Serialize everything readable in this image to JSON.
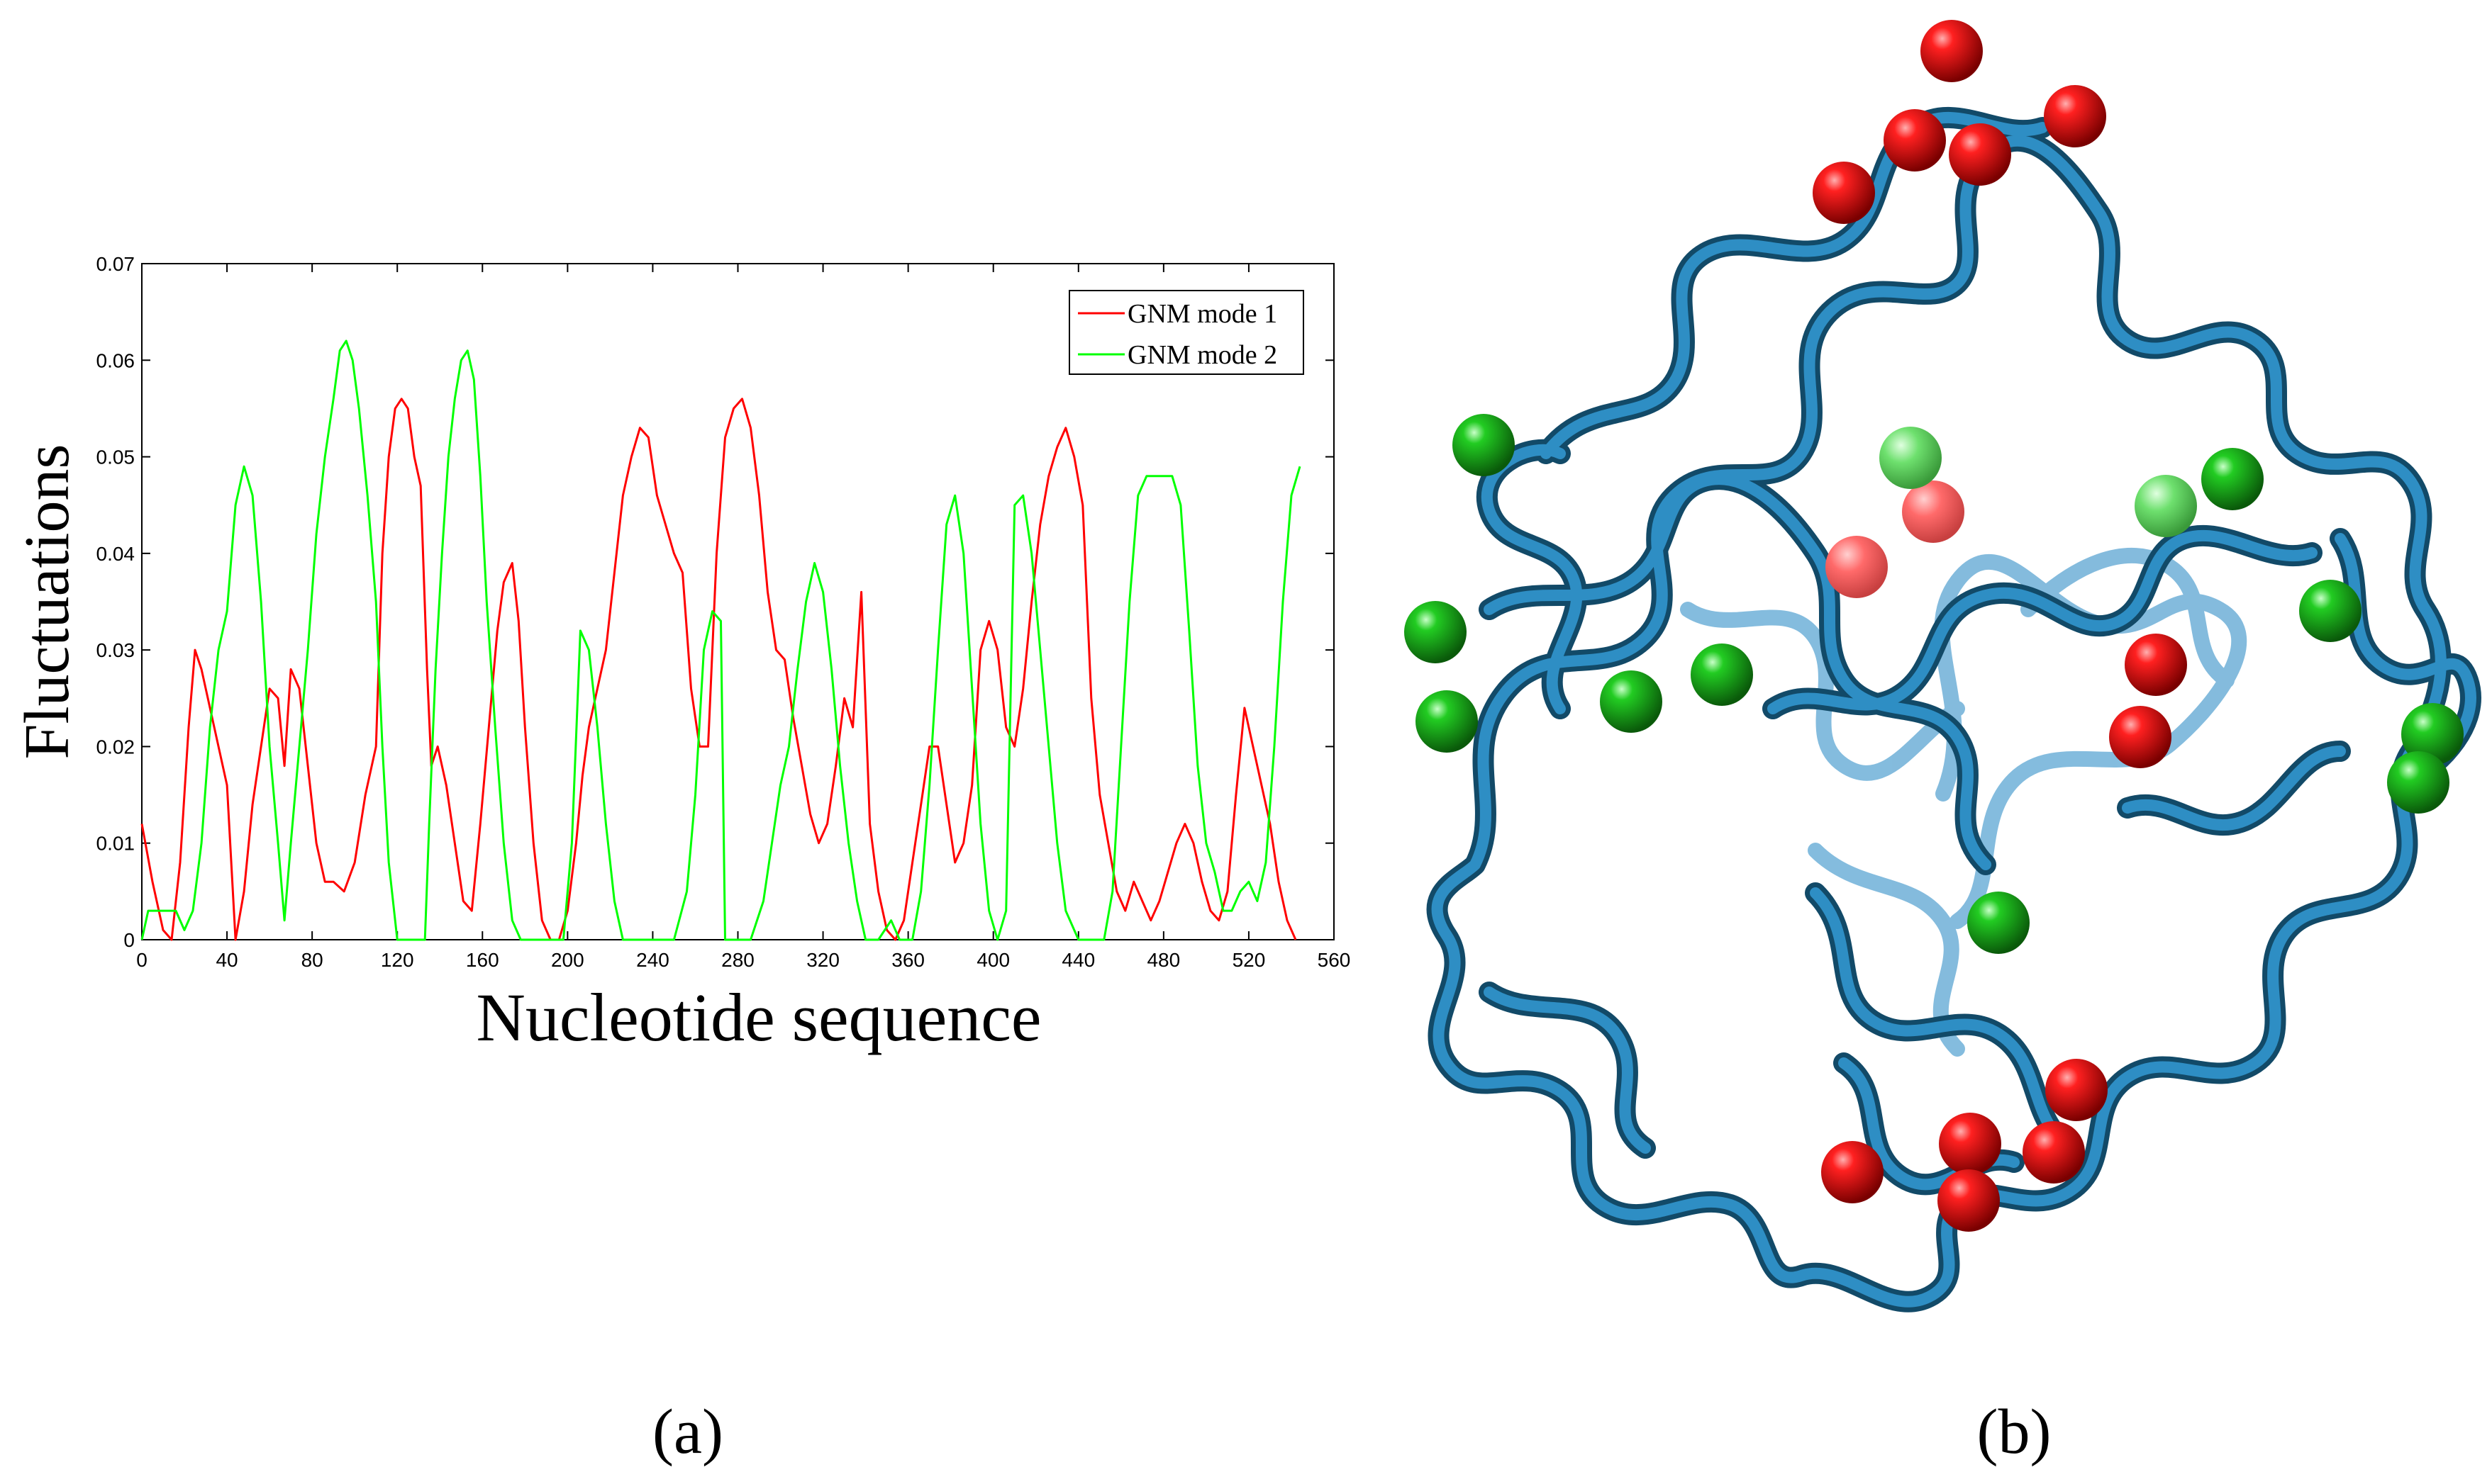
{
  "panels": {
    "a": "(a)",
    "b": "(b)"
  },
  "colors": {
    "mode1": "#ff0000",
    "mode2": "#00ff00",
    "ribbon": "#2b7fb0",
    "ribbon_dark": "#16506f",
    "sphere_red": "#e00000",
    "sphere_green": "#13b013"
  },
  "chart_data": {
    "type": "line",
    "xlabel": "Nucleotide sequence",
    "ylabel": "Fluctuations",
    "xlim": [
      0,
      560
    ],
    "ylim": [
      0,
      0.07
    ],
    "xticks": [
      0,
      40,
      80,
      120,
      160,
      200,
      240,
      280,
      320,
      360,
      400,
      440,
      480,
      520,
      560
    ],
    "yticks": [
      0,
      0.01,
      0.02,
      0.03,
      0.04,
      0.05,
      0.06,
      0.07
    ],
    "legend_position": "top-right",
    "grid": false,
    "series": [
      {
        "name": "GNM mode 1",
        "color": "#ff0000",
        "points": [
          [
            0,
            0.012
          ],
          [
            5,
            0.006
          ],
          [
            10,
            0.001
          ],
          [
            14,
            0
          ],
          [
            18,
            0.008
          ],
          [
            22,
            0.022
          ],
          [
            25,
            0.03
          ],
          [
            28,
            0.028
          ],
          [
            32,
            0.024
          ],
          [
            36,
            0.02
          ],
          [
            40,
            0.016
          ],
          [
            44,
            0
          ],
          [
            48,
            0.005
          ],
          [
            52,
            0.014
          ],
          [
            56,
            0.02
          ],
          [
            60,
            0.026
          ],
          [
            64,
            0.025
          ],
          [
            67,
            0.018
          ],
          [
            70,
            0.028
          ],
          [
            74,
            0.026
          ],
          [
            78,
            0.018
          ],
          [
            82,
            0.01
          ],
          [
            86,
            0.006
          ],
          [
            90,
            0.006
          ],
          [
            95,
            0.005
          ],
          [
            100,
            0.008
          ],
          [
            105,
            0.015
          ],
          [
            110,
            0.02
          ],
          [
            113,
            0.04
          ],
          [
            116,
            0.05
          ],
          [
            119,
            0.055
          ],
          [
            122,
            0.056
          ],
          [
            125,
            0.055
          ],
          [
            128,
            0.05
          ],
          [
            131,
            0.047
          ],
          [
            134,
            0.028
          ],
          [
            136,
            0.018
          ],
          [
            139,
            0.02
          ],
          [
            143,
            0.016
          ],
          [
            147,
            0.01
          ],
          [
            151,
            0.004
          ],
          [
            155,
            0.003
          ],
          [
            159,
            0.012
          ],
          [
            163,
            0.022
          ],
          [
            167,
            0.032
          ],
          [
            170,
            0.037
          ],
          [
            174,
            0.039
          ],
          [
            177,
            0.033
          ],
          [
            180,
            0.022
          ],
          [
            184,
            0.01
          ],
          [
            188,
            0.002
          ],
          [
            192,
            0
          ],
          [
            196,
            0
          ],
          [
            200,
            0.003
          ],
          [
            204,
            0.01
          ],
          [
            207,
            0.017
          ],
          [
            210,
            0.022
          ],
          [
            214,
            0.026
          ],
          [
            218,
            0.03
          ],
          [
            222,
            0.038
          ],
          [
            226,
            0.046
          ],
          [
            230,
            0.05
          ],
          [
            234,
            0.053
          ],
          [
            238,
            0.052
          ],
          [
            242,
            0.046
          ],
          [
            246,
            0.043
          ],
          [
            250,
            0.04
          ],
          [
            254,
            0.038
          ],
          [
            258,
            0.026
          ],
          [
            262,
            0.02
          ],
          [
            266,
            0.02
          ],
          [
            270,
            0.04
          ],
          [
            274,
            0.052
          ],
          [
            278,
            0.055
          ],
          [
            282,
            0.056
          ],
          [
            286,
            0.053
          ],
          [
            290,
            0.046
          ],
          [
            294,
            0.036
          ],
          [
            298,
            0.03
          ],
          [
            302,
            0.029
          ],
          [
            306,
            0.023
          ],
          [
            310,
            0.018
          ],
          [
            314,
            0.013
          ],
          [
            318,
            0.01
          ],
          [
            322,
            0.012
          ],
          [
            326,
            0.018
          ],
          [
            330,
            0.025
          ],
          [
            334,
            0.022
          ],
          [
            338,
            0.036
          ],
          [
            342,
            0.012
          ],
          [
            346,
            0.005
          ],
          [
            350,
            0.001
          ],
          [
            354,
            0
          ],
          [
            358,
            0.002
          ],
          [
            362,
            0.008
          ],
          [
            366,
            0.014
          ],
          [
            370,
            0.02
          ],
          [
            374,
            0.02
          ],
          [
            378,
            0.014
          ],
          [
            382,
            0.008
          ],
          [
            386,
            0.01
          ],
          [
            390,
            0.016
          ],
          [
            394,
            0.03
          ],
          [
            398,
            0.033
          ],
          [
            402,
            0.03
          ],
          [
            406,
            0.022
          ],
          [
            410,
            0.02
          ],
          [
            414,
            0.026
          ],
          [
            418,
            0.035
          ],
          [
            422,
            0.043
          ],
          [
            426,
            0.048
          ],
          [
            430,
            0.051
          ],
          [
            434,
            0.053
          ],
          [
            438,
            0.05
          ],
          [
            442,
            0.045
          ],
          [
            446,
            0.025
          ],
          [
            450,
            0.015
          ],
          [
            454,
            0.01
          ],
          [
            458,
            0.005
          ],
          [
            462,
            0.003
          ],
          [
            466,
            0.006
          ],
          [
            470,
            0.004
          ],
          [
            474,
            0.002
          ],
          [
            478,
            0.004
          ],
          [
            482,
            0.007
          ],
          [
            486,
            0.01
          ],
          [
            490,
            0.012
          ],
          [
            494,
            0.01
          ],
          [
            498,
            0.006
          ],
          [
            502,
            0.003
          ],
          [
            506,
            0.002
          ],
          [
            510,
            0.005
          ],
          [
            514,
            0.015
          ],
          [
            518,
            0.024
          ],
          [
            522,
            0.02
          ],
          [
            526,
            0.016
          ],
          [
            530,
            0.012
          ],
          [
            534,
            0.006
          ],
          [
            538,
            0.002
          ],
          [
            542,
            0
          ]
        ]
      },
      {
        "name": "GNM mode 2",
        "color": "#00ff00",
        "points": [
          [
            0,
            0
          ],
          [
            3,
            0.003
          ],
          [
            8,
            0.003
          ],
          [
            12,
            0.003
          ],
          [
            16,
            0.003
          ],
          [
            20,
            0.001
          ],
          [
            24,
            0.003
          ],
          [
            28,
            0.01
          ],
          [
            32,
            0.022
          ],
          [
            36,
            0.03
          ],
          [
            40,
            0.034
          ],
          [
            44,
            0.045
          ],
          [
            48,
            0.049
          ],
          [
            52,
            0.046
          ],
          [
            56,
            0.035
          ],
          [
            60,
            0.02
          ],
          [
            64,
            0.01
          ],
          [
            67,
            0.002
          ],
          [
            70,
            0.01
          ],
          [
            74,
            0.02
          ],
          [
            78,
            0.03
          ],
          [
            82,
            0.042
          ],
          [
            86,
            0.05
          ],
          [
            90,
            0.056
          ],
          [
            93,
            0.061
          ],
          [
            96,
            0.062
          ],
          [
            99,
            0.06
          ],
          [
            102,
            0.055
          ],
          [
            106,
            0.046
          ],
          [
            110,
            0.035
          ],
          [
            113,
            0.02
          ],
          [
            116,
            0.008
          ],
          [
            120,
            0
          ],
          [
            130,
            0
          ],
          [
            133,
            0
          ],
          [
            135,
            0.012
          ],
          [
            138,
            0.028
          ],
          [
            141,
            0.04
          ],
          [
            144,
            0.05
          ],
          [
            147,
            0.056
          ],
          [
            150,
            0.06
          ],
          [
            153,
            0.061
          ],
          [
            156,
            0.058
          ],
          [
            159,
            0.048
          ],
          [
            162,
            0.035
          ],
          [
            166,
            0.022
          ],
          [
            170,
            0.01
          ],
          [
            174,
            0.002
          ],
          [
            178,
            0
          ],
          [
            190,
            0
          ],
          [
            198,
            0
          ],
          [
            202,
            0.01
          ],
          [
            206,
            0.032
          ],
          [
            210,
            0.03
          ],
          [
            214,
            0.022
          ],
          [
            218,
            0.012
          ],
          [
            222,
            0.004
          ],
          [
            226,
            0
          ],
          [
            250,
            0
          ],
          [
            256,
            0.005
          ],
          [
            260,
            0.015
          ],
          [
            264,
            0.03
          ],
          [
            268,
            0.034
          ],
          [
            272,
            0.033
          ],
          [
            274,
            0
          ],
          [
            280,
            0
          ],
          [
            286,
            0
          ],
          [
            292,
            0.004
          ],
          [
            296,
            0.01
          ],
          [
            300,
            0.016
          ],
          [
            304,
            0.02
          ],
          [
            308,
            0.028
          ],
          [
            312,
            0.035
          ],
          [
            316,
            0.039
          ],
          [
            320,
            0.036
          ],
          [
            324,
            0.028
          ],
          [
            328,
            0.018
          ],
          [
            332,
            0.01
          ],
          [
            336,
            0.004
          ],
          [
            340,
            0
          ],
          [
            346,
            0
          ],
          [
            352,
            0.002
          ],
          [
            356,
            0
          ],
          [
            362,
            0
          ],
          [
            366,
            0.005
          ],
          [
            370,
            0.016
          ],
          [
            374,
            0.03
          ],
          [
            378,
            0.043
          ],
          [
            382,
            0.046
          ],
          [
            386,
            0.04
          ],
          [
            390,
            0.026
          ],
          [
            394,
            0.012
          ],
          [
            398,
            0.003
          ],
          [
            402,
            0
          ],
          [
            406,
            0.003
          ],
          [
            410,
            0.045
          ],
          [
            414,
            0.046
          ],
          [
            418,
            0.04
          ],
          [
            422,
            0.03
          ],
          [
            426,
            0.02
          ],
          [
            430,
            0.01
          ],
          [
            434,
            0.003
          ],
          [
            440,
            0
          ],
          [
            452,
            0
          ],
          [
            456,
            0.005
          ],
          [
            460,
            0.02
          ],
          [
            464,
            0.035
          ],
          [
            468,
            0.046
          ],
          [
            472,
            0.048
          ],
          [
            476,
            0.048
          ],
          [
            480,
            0.048
          ],
          [
            484,
            0.048
          ],
          [
            488,
            0.045
          ],
          [
            492,
            0.032
          ],
          [
            496,
            0.018
          ],
          [
            500,
            0.01
          ],
          [
            504,
            0.007
          ],
          [
            508,
            0.003
          ],
          [
            512,
            0.003
          ],
          [
            516,
            0.005
          ],
          [
            520,
            0.006
          ],
          [
            524,
            0.004
          ],
          [
            528,
            0.008
          ],
          [
            532,
            0.02
          ],
          [
            536,
            0.035
          ],
          [
            540,
            0.046
          ],
          [
            544,
            0.049
          ]
        ]
      }
    ]
  }
}
